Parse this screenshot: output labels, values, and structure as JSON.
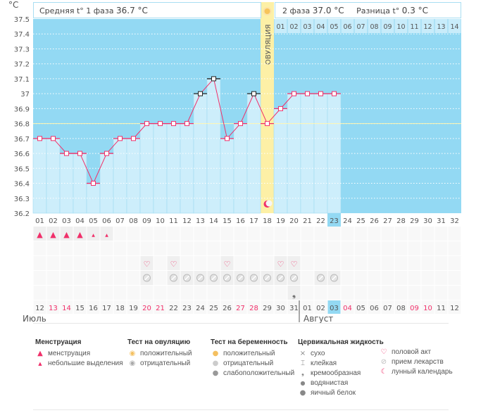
{
  "header": {
    "unit": "°C",
    "phase1_label": "Средняя t° 1 фаза",
    "phase1_value": "36.7 °C",
    "phase2_label": "2 фаза",
    "phase2_value": "37.0 °C",
    "diff_label": "Разница t°",
    "diff_value": "0.3 °C",
    "ovulation_label": "ОВУЛЯЦИЯ"
  },
  "months": {
    "first": "Июль",
    "second": "Август"
  },
  "colors": {
    "chart_bg": "#93d9f3",
    "bar": "#cdeefb",
    "line": "#f0306a",
    "ovulation": "#fdf0a6",
    "current_day": "#93d9f3",
    "weekend": "#f0306a"
  },
  "chart_data": {
    "type": "line",
    "ylabel": "°C",
    "ylim": [
      36.2,
      37.5
    ],
    "yticks": [
      "37.5",
      "37.4",
      "37.3",
      "37.2",
      "37.1",
      "37",
      "36.9",
      "36.8",
      "36.7",
      "36.6",
      "36.5",
      "36.4",
      "36.3",
      "36.2"
    ],
    "coverline": 36.8,
    "ovulation_day": 18,
    "current_day": 23,
    "cycle_days": [
      "01",
      "02",
      "03",
      "04",
      "05",
      "06",
      "07",
      "08",
      "09",
      "10",
      "11",
      "12",
      "13",
      "14",
      "15",
      "16",
      "17",
      "18",
      "19",
      "20",
      "21",
      "22",
      "23",
      "24",
      "25",
      "26",
      "27",
      "28",
      "29",
      "30",
      "31",
      "32"
    ],
    "phase2_days": [
      "01",
      "02",
      "03",
      "04",
      "05",
      "06",
      "07",
      "08",
      "09",
      "10",
      "11",
      "12",
      "13",
      "14"
    ],
    "temperatures": [
      36.7,
      36.7,
      36.6,
      36.6,
      36.4,
      36.6,
      36.7,
      36.7,
      36.8,
      36.8,
      36.8,
      36.8,
      37.0,
      37.1,
      36.7,
      36.8,
      37.0,
      36.8,
      36.9,
      37.0,
      37.0,
      37.0,
      37.0,
      null,
      null,
      null,
      null,
      null,
      null,
      null,
      null,
      null
    ],
    "dates": [
      "12",
      "13",
      "14",
      "15",
      "16",
      "17",
      "18",
      "19",
      "20",
      "21",
      "22",
      "23",
      "24",
      "25",
      "26",
      "27",
      "28",
      "29",
      "30",
      "31",
      "01",
      "02",
      "03",
      "04",
      "05",
      "06",
      "07",
      "08",
      "09",
      "10",
      "11",
      "12"
    ],
    "weekend_dates": [
      1,
      2,
      8,
      9,
      15,
      16,
      23,
      28,
      29
    ],
    "menstruation": [
      "heavy",
      "heavy",
      "heavy",
      "heavy",
      "light",
      "light"
    ],
    "sex_days": [
      9,
      11,
      15,
      19,
      20
    ],
    "medication_days": [
      9,
      11,
      12,
      13,
      14,
      15,
      16,
      17,
      18,
      19,
      20,
      22,
      23
    ],
    "cervical": {
      "20": "creamy"
    },
    "moon_day": 18
  },
  "legend": {
    "menstruation": {
      "title": "Менструация",
      "items": [
        "менструация",
        "небольшие выделения"
      ]
    },
    "ovulation_test": {
      "title": "Тест на овуляцию",
      "items": [
        "положительный",
        "отрицательный"
      ]
    },
    "pregnancy_test": {
      "title": "Тест на беременность",
      "items": [
        "положительный",
        "отрицательный",
        "слабоположительный"
      ]
    },
    "cervical": {
      "title": "Цервикальная жидкость",
      "items": [
        "сухо",
        "клейкая",
        "кремообразная",
        "водянистая",
        "яичный белок"
      ]
    },
    "other": {
      "items": [
        "половой акт",
        "прием лекарств",
        "лунный календарь"
      ]
    }
  }
}
